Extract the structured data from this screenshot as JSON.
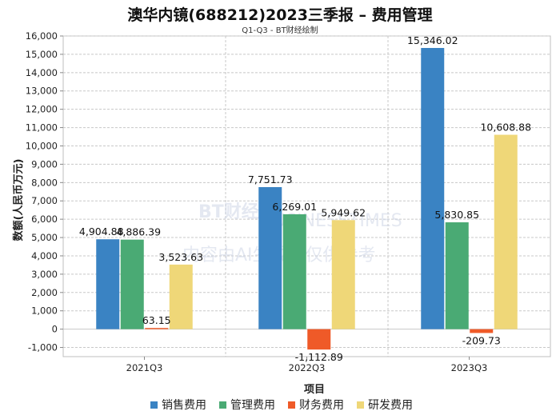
{
  "chart_data": {
    "type": "bar",
    "title": "澳华内镜(688212)2023三季报 – 费用管理",
    "subtitle": "Q1-Q3 - BT财经绘制",
    "categories": [
      "2021Q3",
      "2022Q3",
      "2023Q3"
    ],
    "xlabel": "项目",
    "ylabel": "数额(人民币万元)",
    "ylim": [
      -1500,
      16000
    ],
    "yticks": [
      -1000,
      0,
      1000,
      2000,
      3000,
      4000,
      5000,
      6000,
      7000,
      8000,
      9000,
      10000,
      11000,
      12000,
      13000,
      14000,
      15000,
      16000
    ],
    "series": [
      {
        "name": "销售费用",
        "color": "#3a83c3",
        "values": [
          4904.88,
          7751.73,
          15346.02
        ],
        "labels": [
          "4,904.88",
          "7,751.73",
          "15,346.02"
        ]
      },
      {
        "name": "管理费用",
        "color": "#4aaa74",
        "values": [
          4886.39,
          6269.01,
          5830.85
        ],
        "labels": [
          "4,886.39",
          "6,269.01",
          "5,830.85"
        ]
      },
      {
        "name": "财务费用",
        "color": "#ef5a28",
        "values": [
          63.15,
          -1112.89,
          -209.73
        ],
        "labels": [
          "63.15",
          "-1,112.89",
          "-209.73"
        ]
      },
      {
        "name": "研发费用",
        "color": "#efd778",
        "values": [
          3523.63,
          5949.62,
          10608.88
        ],
        "labels": [
          "3,523.63",
          "5,949.62",
          "10,608.88"
        ]
      }
    ],
    "grid": true,
    "legend": "bottom"
  },
  "watermark": {
    "logo": "BT财经",
    "sub": "BUSINESSTIMES",
    "text": "内容由AI生成，仅供参考"
  }
}
